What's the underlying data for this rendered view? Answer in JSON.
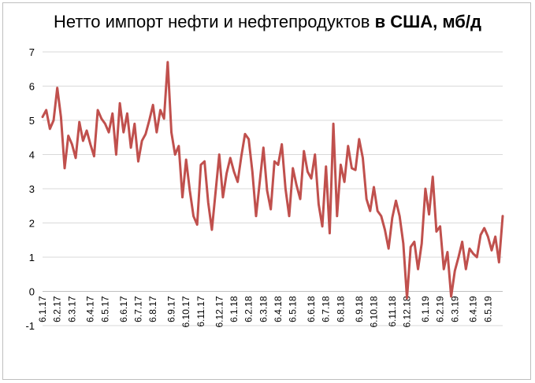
{
  "chart_data": {
    "type": "line",
    "title_regular": "Нетто импорт нефти и нефтепродуктов ",
    "title_bold": "в США, мб/д",
    "ylim": [
      -1,
      7
    ],
    "yticks": [
      -1,
      0,
      1,
      2,
      3,
      4,
      5,
      6,
      7
    ],
    "grid": true,
    "legend": "none",
    "line_color": "#c0504d",
    "grid_color": "#d9d9d9",
    "axis_color": "#bfbfbf",
    "n_points": 126,
    "x_tick_labels": [
      {
        "index": 0,
        "label": "6.1.17"
      },
      {
        "index": 4,
        "label": "6.2.17"
      },
      {
        "index": 8,
        "label": "6.3.17"
      },
      {
        "index": 13,
        "label": "6.4.17"
      },
      {
        "index": 17,
        "label": "6.5.17"
      },
      {
        "index": 22,
        "label": "6.6.17"
      },
      {
        "index": 26,
        "label": "6.7.17"
      },
      {
        "index": 30,
        "label": "6.8.17"
      },
      {
        "index": 35,
        "label": "6.9.17"
      },
      {
        "index": 39,
        "label": "6.10.17"
      },
      {
        "index": 43,
        "label": "6.11.17"
      },
      {
        "index": 48,
        "label": "6.12.17"
      },
      {
        "index": 52,
        "label": "6.1.18"
      },
      {
        "index": 56,
        "label": "6.2.18"
      },
      {
        "index": 60,
        "label": "6.3.18"
      },
      {
        "index": 64,
        "label": "6.4.18"
      },
      {
        "index": 68,
        "label": "6.5.18"
      },
      {
        "index": 73,
        "label": "6.6.18"
      },
      {
        "index": 77,
        "label": "6.7.18"
      },
      {
        "index": 81,
        "label": "6.8.18"
      },
      {
        "index": 86,
        "label": "6.9.18"
      },
      {
        "index": 90,
        "label": "6.10.18"
      },
      {
        "index": 95,
        "label": "6.11.18"
      },
      {
        "index": 99,
        "label": "6.12.18"
      },
      {
        "index": 104,
        "label": "6.1.19"
      },
      {
        "index": 108,
        "label": "6.2.19"
      },
      {
        "index": 112,
        "label": "6.3.19"
      },
      {
        "index": 117,
        "label": "6.4.19"
      },
      {
        "index": 121,
        "label": "6.5.19"
      }
    ],
    "series": [
      {
        "values": [
          5.1,
          5.3,
          4.75,
          5.0,
          5.95,
          5.1,
          3.6,
          4.55,
          4.3,
          3.9,
          4.95,
          4.4,
          4.7,
          4.3,
          3.95,
          5.3,
          5.05,
          4.9,
          4.65,
          5.2,
          4.0,
          5.5,
          4.65,
          5.2,
          4.2,
          4.9,
          3.8,
          4.4,
          4.6,
          5.0,
          5.45,
          4.65,
          5.3,
          5.05,
          6.7,
          4.65,
          4.0,
          4.25,
          2.75,
          3.85,
          2.95,
          2.2,
          1.95,
          3.7,
          3.8,
          2.6,
          1.8,
          2.9,
          4.0,
          2.75,
          3.45,
          3.9,
          3.5,
          3.2,
          3.95,
          4.6,
          4.45,
          3.5,
          2.2,
          3.2,
          4.2,
          2.95,
          2.4,
          3.8,
          3.7,
          4.3,
          3.0,
          2.2,
          3.6,
          3.1,
          2.7,
          4.1,
          3.5,
          3.3,
          4.0,
          2.55,
          1.9,
          3.65,
          1.7,
          4.9,
          2.2,
          3.7,
          3.2,
          4.25,
          3.6,
          3.55,
          4.45,
          3.9,
          2.7,
          2.35,
          3.05,
          2.35,
          2.2,
          1.8,
          1.25,
          2.15,
          2.65,
          2.2,
          1.4,
          -0.2,
          1.3,
          1.45,
          0.65,
          1.4,
          3.0,
          2.25,
          3.35,
          1.75,
          1.9,
          0.65,
          1.15,
          -0.15,
          0.6,
          1.0,
          1.45,
          0.65,
          1.25,
          1.1,
          1.0,
          1.65,
          1.85,
          1.6,
          1.2,
          1.6,
          0.85,
          2.2
        ]
      }
    ]
  }
}
